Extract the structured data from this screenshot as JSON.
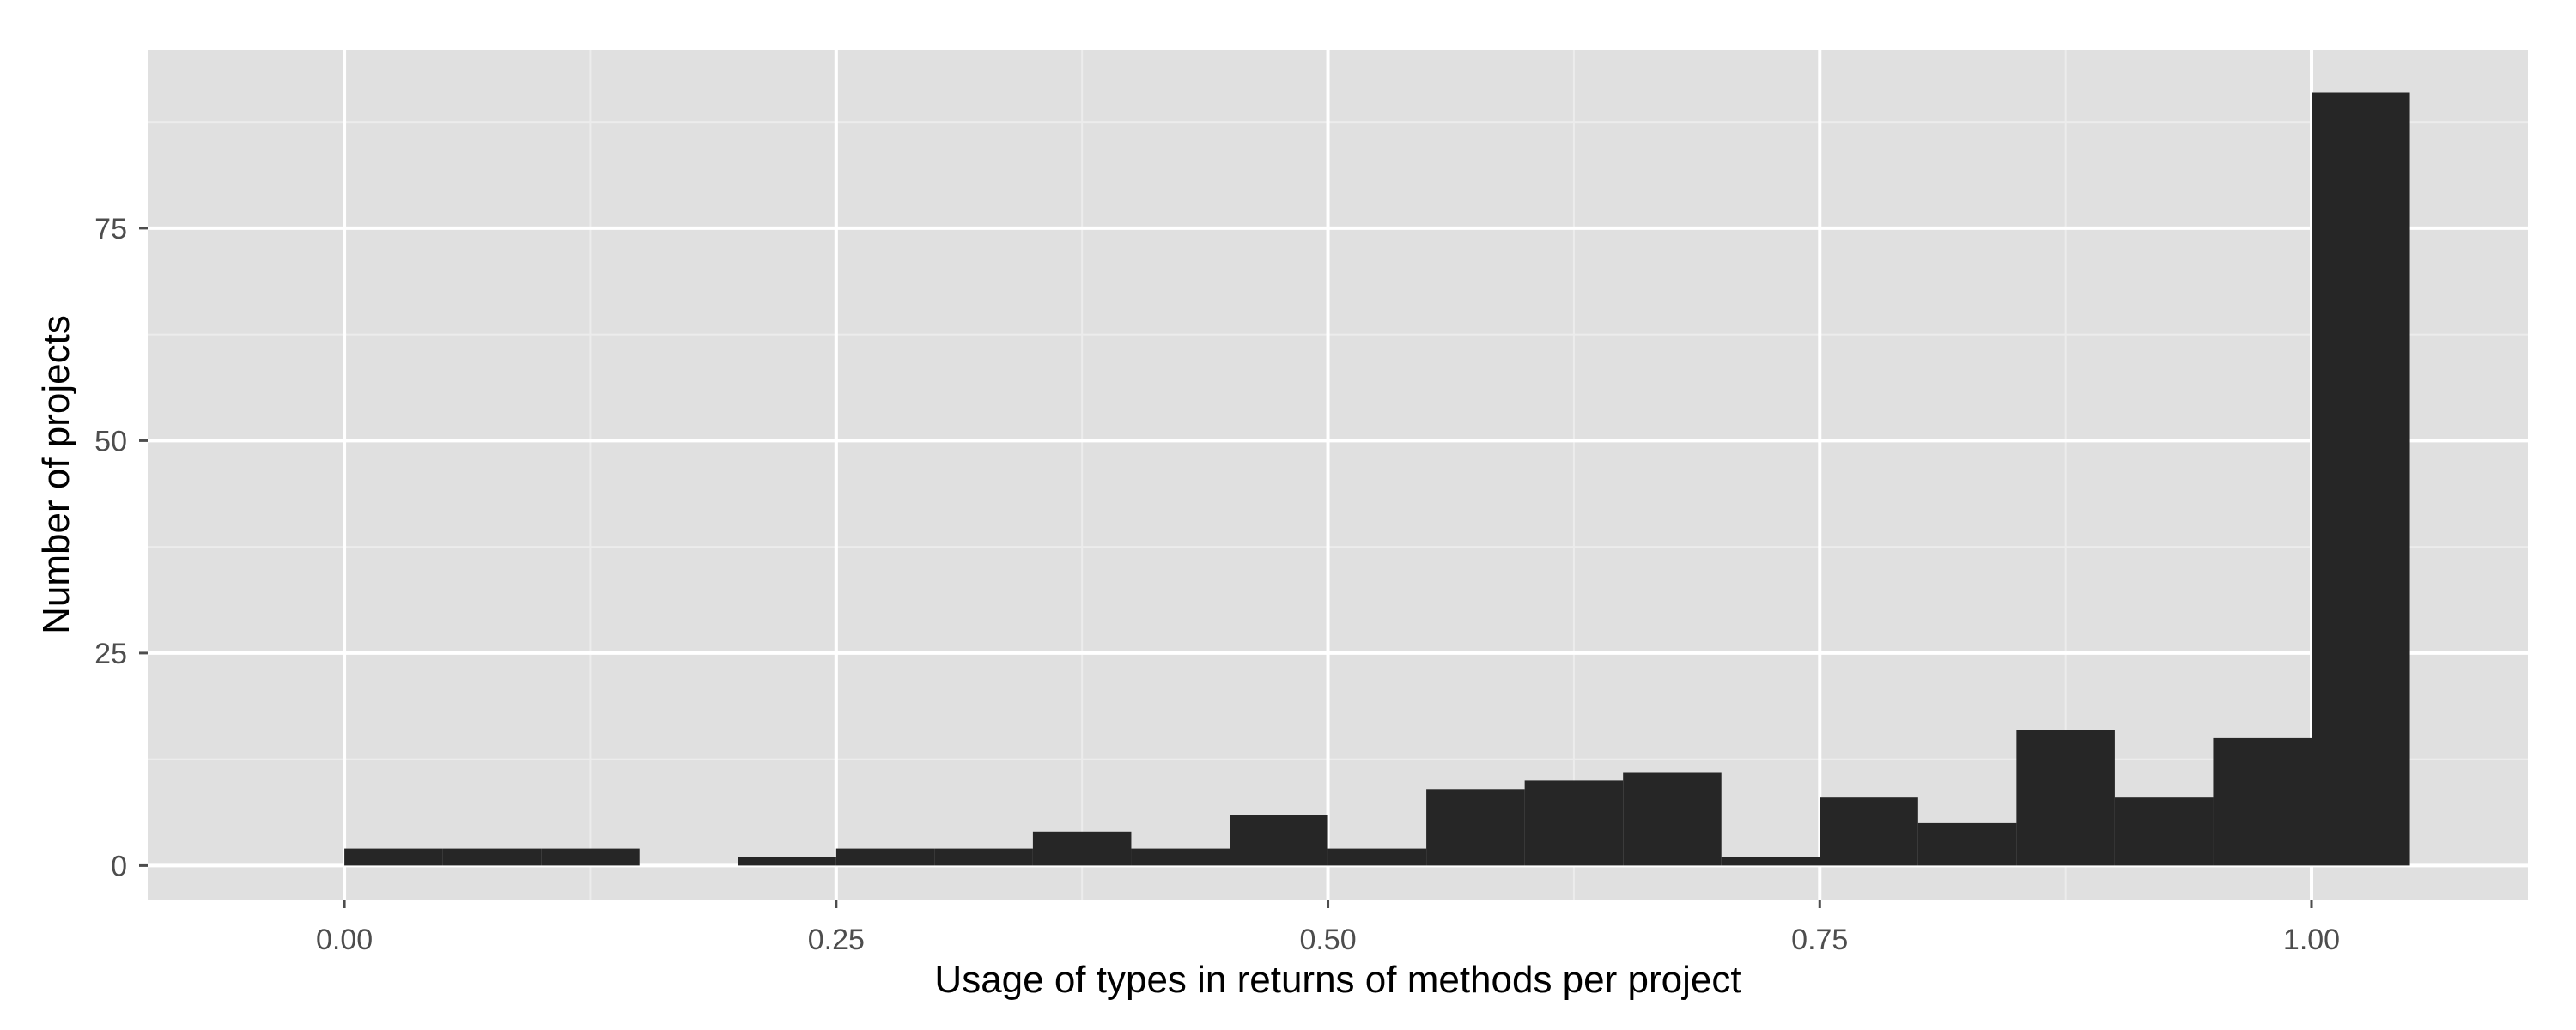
{
  "chart_data": {
    "type": "bar",
    "xlabel": "Usage of types in returns of methods per project",
    "ylabel": "Number of projects",
    "xlim": [
      -0.1,
      1.11
    ],
    "ylim": [
      -4,
      96
    ],
    "grid": true,
    "legend": "none",
    "xticks": [
      {
        "value": 0.0,
        "label": "0.00"
      },
      {
        "value": 0.25,
        "label": "0.25"
      },
      {
        "value": 0.5,
        "label": "0.50"
      },
      {
        "value": 0.75,
        "label": "0.75"
      },
      {
        "value": 1.0,
        "label": "1.00"
      }
    ],
    "yticks": [
      {
        "value": 0,
        "label": "0"
      },
      {
        "value": 25,
        "label": "25"
      },
      {
        "value": 50,
        "label": "50"
      },
      {
        "value": 75,
        "label": "75"
      }
    ],
    "bin_width": 0.05,
    "bins": [
      {
        "x0": 0.0,
        "x1": 0.05,
        "count": 2
      },
      {
        "x0": 0.05,
        "x1": 0.1,
        "count": 2
      },
      {
        "x0": 0.1,
        "x1": 0.15,
        "count": 2
      },
      {
        "x0": 0.15,
        "x1": 0.2,
        "count": 0
      },
      {
        "x0": 0.2,
        "x1": 0.25,
        "count": 1
      },
      {
        "x0": 0.25,
        "x1": 0.3,
        "count": 2
      },
      {
        "x0": 0.3,
        "x1": 0.35,
        "count": 2
      },
      {
        "x0": 0.35,
        "x1": 0.4,
        "count": 4
      },
      {
        "x0": 0.4,
        "x1": 0.45,
        "count": 2
      },
      {
        "x0": 0.45,
        "x1": 0.5,
        "count": 6
      },
      {
        "x0": 0.5,
        "x1": 0.55,
        "count": 2
      },
      {
        "x0": 0.55,
        "x1": 0.6,
        "count": 9
      },
      {
        "x0": 0.6,
        "x1": 0.65,
        "count": 10
      },
      {
        "x0": 0.65,
        "x1": 0.7,
        "count": 11
      },
      {
        "x0": 0.7,
        "x1": 0.75,
        "count": 1
      },
      {
        "x0": 0.75,
        "x1": 0.8,
        "count": 8
      },
      {
        "x0": 0.8,
        "x1": 0.85,
        "count": 5
      },
      {
        "x0": 0.85,
        "x1": 0.9,
        "count": 16
      },
      {
        "x0": 0.9,
        "x1": 0.95,
        "count": 8
      },
      {
        "x0": 0.95,
        "x1": 1.0,
        "count": 15
      },
      {
        "x0": 1.0,
        "x1": 1.05,
        "count": 91
      }
    ]
  },
  "colors": {
    "panel_background": "#e0e0e0",
    "grid_major": "#ffffff",
    "grid_minor": "#ececec",
    "bar_fill": "#262626",
    "tick_text": "#4d4d4d",
    "tick_mark": "#4d4d4d",
    "axis_title": "#000000"
  }
}
